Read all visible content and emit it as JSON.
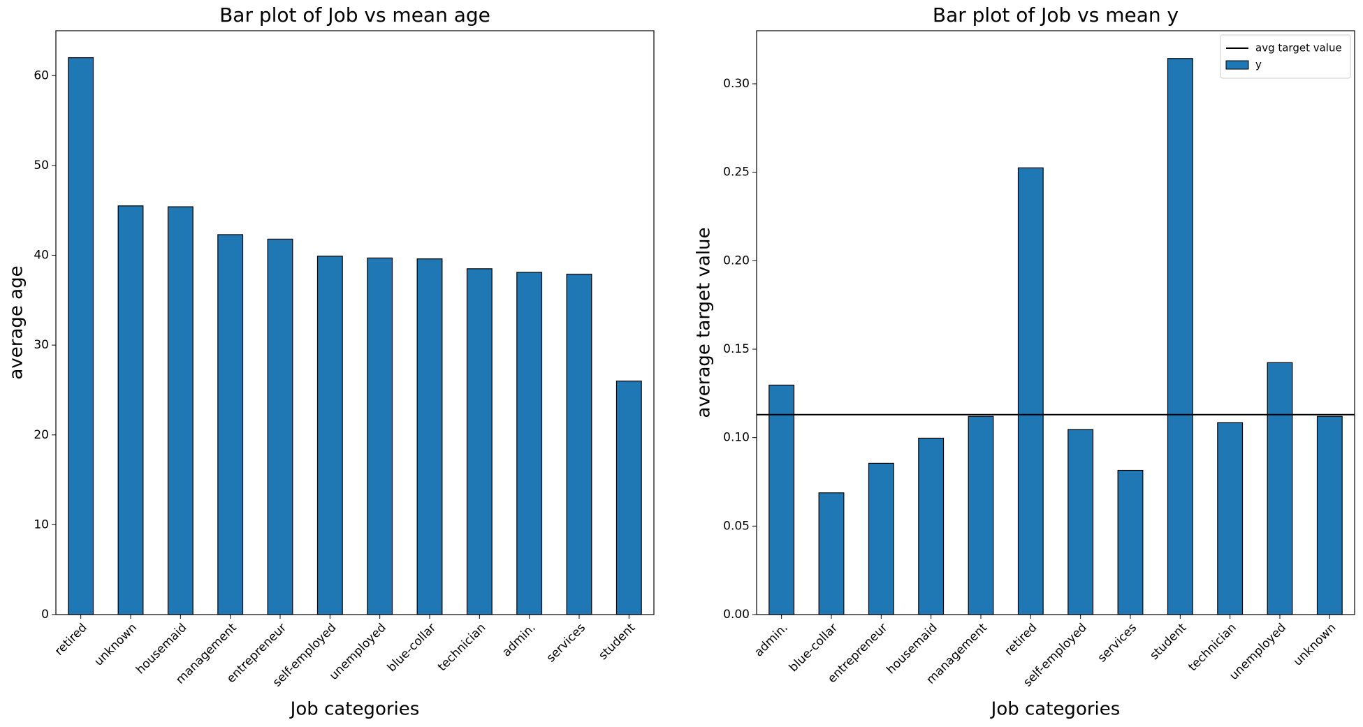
{
  "chart_data": [
    {
      "type": "bar",
      "title": "Bar plot of Job vs mean age",
      "xlabel": "Job categories",
      "ylabel": "average age",
      "categories": [
        "retired",
        "unknown",
        "housemaid",
        "management",
        "entrepreneur",
        "self-employed",
        "unemployed",
        "blue-collar",
        "technician",
        "admin.",
        "services",
        "student"
      ],
      "values": [
        62.0,
        45.5,
        45.4,
        42.3,
        41.8,
        39.9,
        39.7,
        39.6,
        38.5,
        38.1,
        37.9,
        26.0
      ],
      "color": "#1f77b4",
      "edgecolor": "#000000",
      "ylim": [
        0,
        65
      ],
      "yticks": [
        0,
        10,
        20,
        30,
        40,
        50,
        60
      ],
      "grid": false
    },
    {
      "type": "bar",
      "title": "Bar plot of Job vs mean y",
      "xlabel": "Job categories",
      "ylabel": "average target value",
      "categories": [
        "admin.",
        "blue-collar",
        "entrepreneur",
        "housemaid",
        "management",
        "retired",
        "self-employed",
        "services",
        "student",
        "technician",
        "unemployed",
        "unknown"
      ],
      "series": [
        {
          "name": "y",
          "color": "#1f77b4",
          "values": [
            0.1297,
            0.0688,
            0.0855,
            0.0997,
            0.112,
            0.2525,
            0.1046,
            0.0815,
            0.3143,
            0.1085,
            0.1424,
            0.112
          ]
        }
      ],
      "hline": {
        "name": "avg target value",
        "value": 0.113,
        "color": "#000000"
      },
      "edgecolor": "#000000",
      "ylim": [
        0,
        0.33
      ],
      "yticks": [
        {
          "value": 0,
          "label": "0.00"
        },
        {
          "value": 0.05,
          "label": "0.05"
        },
        {
          "value": 0.1,
          "label": "0.10"
        },
        {
          "value": 0.15,
          "label": "0.15"
        },
        {
          "value": 0.2,
          "label": "0.20"
        },
        {
          "value": 0.25,
          "label": "0.25"
        },
        {
          "value": 0.3,
          "label": "0.30"
        }
      ],
      "grid": false,
      "legend": "upper right"
    }
  ]
}
